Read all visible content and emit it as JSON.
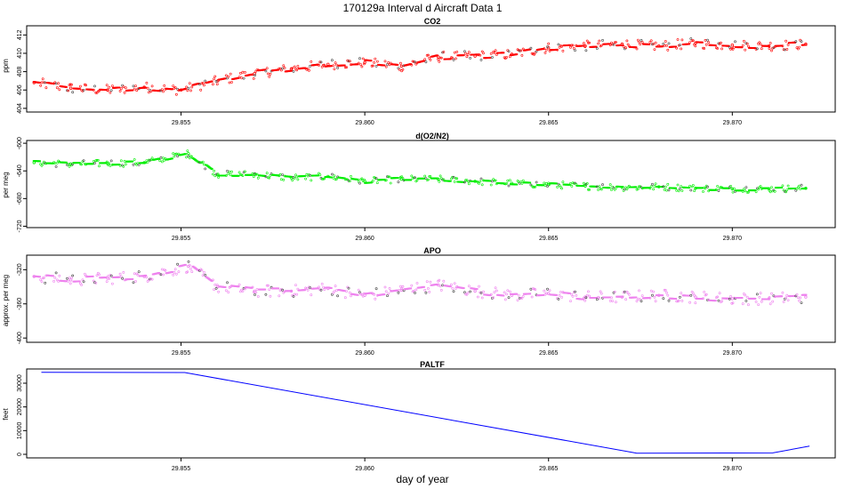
{
  "figure": {
    "title": "170129a   Interval d Aircraft Data 1",
    "xlabel": "day of year"
  },
  "colors": {
    "co2": "#ff0000",
    "o2n2": "#00ee00",
    "apo": "#ee82ee",
    "paltf": "#0000ff"
  },
  "chart_data": [
    {
      "type": "scatter",
      "title": "CO2",
      "ylabel": "ppm",
      "xlim": [
        29.8508,
        29.8728
      ],
      "ylim": [
        403.6,
        413.0
      ],
      "x_ticks": [
        "29.855",
        "29.860",
        "29.865",
        "29.870"
      ],
      "y_ticks": [
        "404",
        "406",
        "408",
        "410",
        "412"
      ],
      "series": [
        {
          "x": [
            29.851,
            29.852,
            29.853,
            29.854,
            29.855,
            29.856,
            29.857,
            29.858,
            29.859,
            29.86,
            29.861,
            29.862,
            29.863,
            29.864,
            29.865,
            29.866,
            29.867,
            29.868,
            29.869,
            29.87,
            29.871,
            29.872
          ],
          "y": [
            406.8,
            406.2,
            406.0,
            406.3,
            406.0,
            407.0,
            407.8,
            408.3,
            408.8,
            409.0,
            408.6,
            409.6,
            409.7,
            409.9,
            410.6,
            410.8,
            411.0,
            410.8,
            411.1,
            410.9,
            410.8,
            411.0
          ]
        }
      ]
    },
    {
      "type": "scatter",
      "title": "d(O2/N2)",
      "ylabel": "per meg",
      "xlim": [
        29.8508,
        29.8728
      ],
      "ylim": [
        -722,
        -596
      ],
      "x_ticks": [
        "29.855",
        "29.860",
        "29.865",
        "29.870"
      ],
      "y_ticks": [
        "-600",
        "-640",
        "-680",
        "-720"
      ],
      "series": [
        {
          "x": [
            29.851,
            29.852,
            29.853,
            29.854,
            29.8552,
            29.856,
            29.857,
            29.858,
            29.859,
            29.86,
            29.861,
            29.862,
            29.863,
            29.864,
            29.865,
            29.866,
            29.867,
            29.868,
            29.869,
            29.87,
            29.871,
            29.872
          ],
          "y": [
            -628,
            -630,
            -629,
            -628,
            -615,
            -645,
            -645,
            -650,
            -648,
            -655,
            -652,
            -652,
            -655,
            -658,
            -660,
            -662,
            -664,
            -663,
            -665,
            -666,
            -666,
            -665
          ]
        }
      ]
    },
    {
      "type": "scatter",
      "title": "APO",
      "ylabel": "approx. per meg",
      "xlim": [
        29.8508,
        29.8728
      ],
      "ylim": [
        -405,
        -303
      ],
      "x_ticks": [
        "29.855",
        "29.860",
        "29.865",
        "29.870"
      ],
      "y_ticks": [
        "-320",
        "-360",
        "-400"
      ],
      "series": [
        {
          "x": [
            29.851,
            29.852,
            29.853,
            29.854,
            29.8552,
            29.856,
            29.857,
            29.858,
            29.859,
            29.86,
            29.861,
            29.862,
            29.863,
            29.864,
            29.865,
            29.866,
            29.867,
            29.868,
            29.869,
            29.87,
            29.871,
            29.872
          ],
          "y": [
            -328,
            -332,
            -330,
            -328,
            -316,
            -340,
            -345,
            -345,
            -342,
            -350,
            -344,
            -338,
            -345,
            -350,
            -348,
            -352,
            -352,
            -350,
            -352,
            -354,
            -354,
            -352
          ]
        }
      ]
    },
    {
      "type": "line",
      "title": "PALTF",
      "ylabel": "feet",
      "xlim": [
        29.8508,
        29.8728
      ],
      "ylim": [
        -1500,
        36000
      ],
      "x_ticks": [
        "29.855",
        "29.860",
        "29.865",
        "29.870"
      ],
      "y_ticks": [
        "0",
        "10000",
        "20000",
        "30000"
      ],
      "series": [
        {
          "x": [
            29.8512,
            29.8551,
            29.8674,
            29.8711,
            29.8721
          ],
          "y": [
            34600,
            34500,
            500,
            600,
            3500
          ]
        }
      ]
    }
  ]
}
